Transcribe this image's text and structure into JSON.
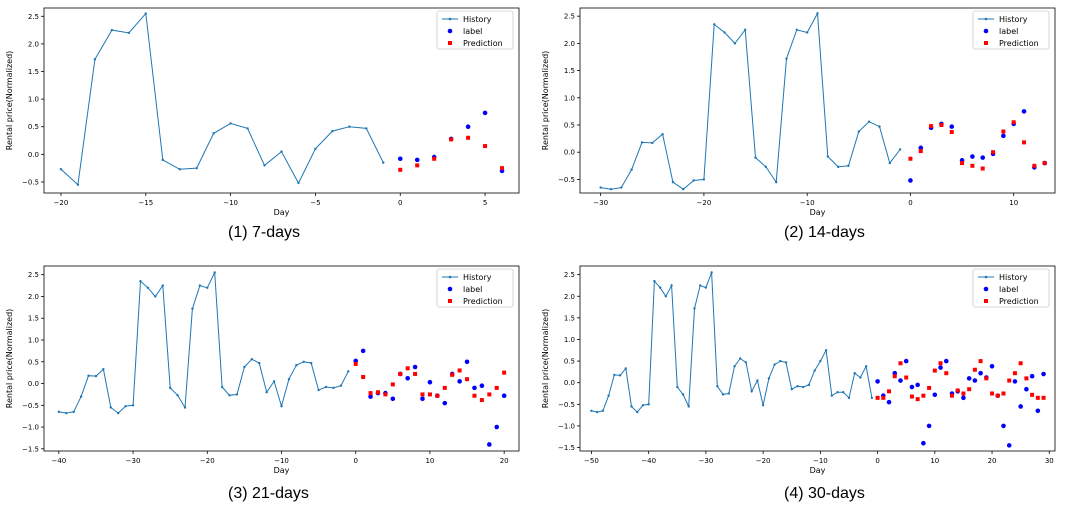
{
  "colors": {
    "history": "#1f77b4",
    "label": "#0000ff",
    "prediction": "#ff0000",
    "axis": "#000000"
  },
  "chart_data": [
    {
      "type": "line",
      "caption": "(1)  7-days",
      "xlabel": "Day",
      "ylabel": "Rental price(Normalized)",
      "xlim": [
        -21,
        7
      ],
      "ylim": [
        -0.7,
        2.65
      ],
      "xticks": [
        -20,
        -15,
        -10,
        -5,
        0,
        5
      ],
      "yticks": [
        -0.5,
        0.0,
        0.5,
        1.0,
        1.5,
        2.0,
        2.5
      ],
      "legend": {
        "position": "top-right",
        "entries": [
          "History",
          "label",
          "Prediction"
        ]
      },
      "series": [
        {
          "name": "History",
          "kind": "line",
          "x": [
            -20,
            -19,
            -18,
            -17,
            -16,
            -15,
            -14,
            -13,
            -12,
            -11,
            -10,
            -9,
            -8,
            -7,
            -6,
            -5,
            -4,
            -3,
            -2,
            -1
          ],
          "y": [
            -0.27,
            -0.55,
            1.72,
            2.25,
            2.2,
            2.55,
            -0.1,
            -0.27,
            -0.25,
            0.38,
            0.56,
            0.47,
            -0.2,
            0.05,
            -0.52,
            0.1,
            0.42,
            0.5,
            0.47,
            -0.15
          ]
        },
        {
          "name": "label",
          "kind": "scatter",
          "x": [
            0,
            1,
            2,
            3,
            4,
            5,
            6
          ],
          "y": [
            -0.08,
            -0.1,
            -0.05,
            0.28,
            0.5,
            0.75,
            -0.3
          ]
        },
        {
          "name": "Prediction",
          "kind": "scatter",
          "x": [
            0,
            1,
            2,
            3,
            4,
            5,
            6
          ],
          "y": [
            -0.28,
            -0.2,
            -0.08,
            0.27,
            0.3,
            0.15,
            -0.25
          ]
        }
      ]
    },
    {
      "type": "line",
      "caption": "(2)  14-days",
      "xlabel": "Day",
      "ylabel": "Rental price(Normalized)",
      "xlim": [
        -32,
        14
      ],
      "ylim": [
        -0.75,
        2.65
      ],
      "xticks": [
        -30,
        -20,
        -10,
        0,
        10
      ],
      "yticks": [
        -0.5,
        0.0,
        0.5,
        1.0,
        1.5,
        2.0,
        2.5
      ],
      "legend": {
        "position": "top-right",
        "entries": [
          "History",
          "label",
          "Prediction"
        ]
      },
      "series": [
        {
          "name": "History",
          "kind": "line",
          "x": [
            -30,
            -29,
            -28,
            -27,
            -26,
            -25,
            -24,
            -23,
            -22,
            -21,
            -20,
            -19,
            -18,
            -17,
            -16,
            -15,
            -14,
            -13,
            -12,
            -11,
            -10,
            -9,
            -8,
            -7,
            -6,
            -5,
            -4,
            -3,
            -2,
            -1
          ],
          "y": [
            -0.65,
            -0.68,
            -0.65,
            -0.32,
            0.18,
            0.17,
            0.33,
            -0.55,
            -0.68,
            -0.52,
            -0.5,
            2.35,
            2.2,
            2.0,
            2.25,
            -0.1,
            -0.27,
            -0.55,
            1.72,
            2.25,
            2.2,
            2.55,
            -0.08,
            -0.27,
            -0.25,
            0.38,
            0.56,
            0.47,
            -0.2,
            0.05
          ]
        },
        {
          "name": "label",
          "kind": "scatter",
          "x": [
            0,
            1,
            2,
            3,
            4,
            5,
            6,
            7,
            8,
            9,
            10,
            11,
            12,
            13
          ],
          "y": [
            -0.52,
            0.08,
            0.45,
            0.52,
            0.47,
            -0.15,
            -0.08,
            -0.1,
            -0.03,
            0.3,
            0.52,
            0.75,
            -0.28,
            -0.2
          ]
        },
        {
          "name": "Prediction",
          "kind": "scatter",
          "x": [
            0,
            1,
            2,
            3,
            4,
            5,
            6,
            7,
            8,
            9,
            10,
            11,
            12,
            13
          ],
          "y": [
            -0.12,
            0.02,
            0.48,
            0.5,
            0.37,
            -0.2,
            -0.25,
            -0.3,
            0.0,
            0.38,
            0.55,
            0.18,
            -0.25,
            -0.2
          ]
        }
      ]
    },
    {
      "type": "line",
      "caption": "(3)  21-days",
      "xlabel": "Day",
      "ylabel": "Rental price(Normalized)",
      "xlim": [
        -42,
        22
      ],
      "ylim": [
        -1.55,
        2.7
      ],
      "xticks": [
        -40,
        -30,
        -20,
        -10,
        0,
        10,
        20
      ],
      "yticks": [
        -1.5,
        -1.0,
        -0.5,
        0.0,
        0.5,
        1.0,
        1.5,
        2.0,
        2.5
      ],
      "legend": {
        "position": "top-right",
        "entries": [
          "History",
          "label",
          "Prediction"
        ]
      },
      "series": [
        {
          "name": "History",
          "kind": "line",
          "x": [
            -40,
            -39,
            -38,
            -37,
            -36,
            -35,
            -34,
            -33,
            -32,
            -31,
            -30,
            -29,
            -28,
            -27,
            -26,
            -25,
            -24,
            -23,
            -22,
            -21,
            -20,
            -19,
            -18,
            -17,
            -16,
            -15,
            -14,
            -13,
            -12,
            -11,
            -10,
            -9,
            -8,
            -7,
            -6,
            -5,
            -4,
            -3,
            -2,
            -1
          ],
          "y": [
            -0.65,
            -0.68,
            -0.65,
            -0.3,
            0.18,
            0.17,
            0.33,
            -0.55,
            -0.68,
            -0.52,
            -0.5,
            2.35,
            2.2,
            2.0,
            2.25,
            -0.1,
            -0.27,
            -0.55,
            1.72,
            2.25,
            2.2,
            2.55,
            -0.08,
            -0.27,
            -0.25,
            0.38,
            0.56,
            0.47,
            -0.2,
            0.05,
            -0.52,
            0.1,
            0.42,
            0.5,
            0.47,
            -0.15,
            -0.08,
            -0.1,
            -0.05,
            0.28
          ]
        },
        {
          "name": "label",
          "kind": "scatter",
          "x": [
            0,
            1,
            2,
            3,
            4,
            5,
            6,
            7,
            8,
            9,
            10,
            11,
            12,
            13,
            14,
            15,
            16,
            17,
            18,
            19,
            20
          ],
          "y": [
            0.52,
            0.75,
            -0.3,
            -0.22,
            -0.22,
            -0.35,
            0.22,
            0.12,
            0.38,
            -0.35,
            0.03,
            -0.28,
            -0.45,
            0.22,
            0.05,
            0.5,
            -0.1,
            -0.05,
            -1.4,
            -1.0,
            -0.28
          ]
        },
        {
          "name": "Prediction",
          "kind": "scatter",
          "x": [
            0,
            1,
            2,
            3,
            4,
            5,
            6,
            7,
            8,
            9,
            10,
            11,
            12,
            13,
            14,
            15,
            16,
            17,
            18,
            19,
            20
          ],
          "y": [
            0.45,
            0.15,
            -0.22,
            -0.2,
            -0.25,
            -0.02,
            0.22,
            0.35,
            0.22,
            -0.25,
            -0.25,
            -0.28,
            -0.1,
            0.2,
            0.3,
            0.1,
            -0.28,
            -0.38,
            -0.25,
            -0.1,
            0.25
          ]
        }
      ]
    },
    {
      "type": "line",
      "caption": "(4)  30-days",
      "xlabel": "Day",
      "ylabel": "Rental price(Normalized)",
      "xlim": [
        -52,
        31
      ],
      "ylim": [
        -1.58,
        2.7
      ],
      "xticks": [
        -50,
        -40,
        -30,
        -20,
        -10,
        0,
        10,
        20,
        30
      ],
      "yticks": [
        -1.5,
        -1.0,
        -0.5,
        0.0,
        0.5,
        1.0,
        1.5,
        2.0,
        2.5
      ],
      "legend": {
        "position": "top-right",
        "entries": [
          "History",
          "label",
          "Prediction"
        ]
      },
      "series": [
        {
          "name": "History",
          "kind": "line",
          "x": [
            -50,
            -49,
            -48,
            -47,
            -46,
            -45,
            -44,
            -43,
            -42,
            -41,
            -40,
            -39,
            -38,
            -37,
            -36,
            -35,
            -34,
            -33,
            -32,
            -31,
            -30,
            -29,
            -28,
            -27,
            -26,
            -25,
            -24,
            -23,
            -22,
            -21,
            -20,
            -19,
            -18,
            -17,
            -16,
            -15,
            -14,
            -13,
            -12,
            -11,
            -10,
            -9,
            -8,
            -7,
            -6,
            -5,
            -4,
            -3,
            -2,
            -1
          ],
          "y": [
            -0.65,
            -0.68,
            -0.65,
            -0.3,
            0.18,
            0.17,
            0.33,
            -0.55,
            -0.68,
            -0.52,
            -0.5,
            2.35,
            2.2,
            2.0,
            2.25,
            -0.1,
            -0.27,
            -0.55,
            1.72,
            2.25,
            2.2,
            2.55,
            -0.08,
            -0.27,
            -0.25,
            0.38,
            0.56,
            0.47,
            -0.2,
            0.05,
            -0.52,
            0.1,
            0.42,
            0.5,
            0.47,
            -0.15,
            -0.08,
            -0.1,
            -0.05,
            0.28,
            0.5,
            0.75,
            -0.3,
            -0.22,
            -0.22,
            -0.35,
            0.22,
            0.12,
            0.38,
            -0.35
          ]
        },
        {
          "name": "label",
          "kind": "scatter",
          "x": [
            0,
            1,
            2,
            3,
            4,
            5,
            6,
            7,
            8,
            9,
            10,
            11,
            12,
            13,
            14,
            15,
            16,
            17,
            18,
            19,
            20,
            21,
            22,
            23,
            24,
            25,
            26,
            27,
            28,
            29
          ],
          "y": [
            0.03,
            -0.3,
            -0.45,
            0.22,
            0.05,
            0.5,
            -0.1,
            -0.05,
            -1.4,
            -1.0,
            -0.28,
            0.35,
            0.5,
            -0.25,
            -0.2,
            -0.35,
            0.1,
            0.05,
            0.22,
            0.12,
            0.38,
            -0.3,
            -1.0,
            -1.45,
            0.03,
            -0.55,
            -0.15,
            0.15,
            -0.65,
            0.2
          ]
        },
        {
          "name": "Prediction",
          "kind": "scatter",
          "x": [
            0,
            1,
            2,
            3,
            4,
            5,
            6,
            7,
            8,
            9,
            10,
            11,
            12,
            13,
            14,
            15,
            16,
            17,
            18,
            19,
            20,
            21,
            22,
            23,
            24,
            25,
            26,
            27,
            28,
            29
          ],
          "y": [
            -0.35,
            -0.35,
            -0.2,
            0.15,
            0.45,
            0.12,
            -0.32,
            -0.38,
            -0.3,
            -0.12,
            0.28,
            0.45,
            0.22,
            -0.3,
            -0.18,
            -0.25,
            -0.15,
            0.3,
            0.5,
            0.1,
            -0.25,
            -0.3,
            -0.25,
            0.05,
            0.22,
            0.45,
            0.1,
            -0.28,
            -0.35,
            -0.35
          ]
        }
      ]
    }
  ]
}
